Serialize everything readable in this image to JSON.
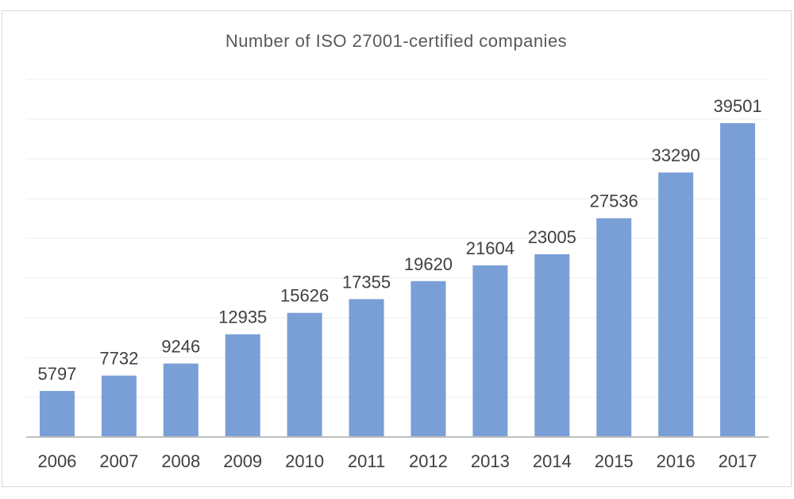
{
  "chart_data": {
    "type": "bar",
    "title": "Number of ISO 27001-certified companies",
    "categories": [
      "2006",
      "2007",
      "2008",
      "2009",
      "2010",
      "2011",
      "2012",
      "2013",
      "2014",
      "2015",
      "2016",
      "2017"
    ],
    "values": [
      5797,
      7732,
      9246,
      12935,
      15626,
      17355,
      19620,
      21604,
      23005,
      27536,
      33290,
      39501
    ],
    "ylim": [
      0,
      45000
    ],
    "grid": true,
    "bar_color": "#7a9fd6",
    "gridline_color": "#ececec",
    "axis_color": "#bfbfbf"
  }
}
